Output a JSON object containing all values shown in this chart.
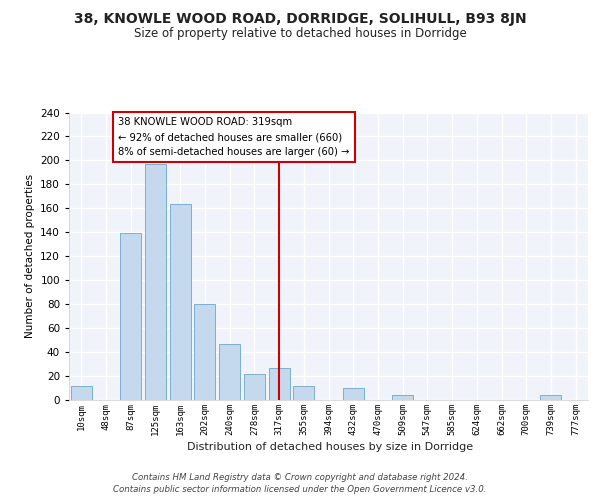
{
  "title": "38, KNOWLE WOOD ROAD, DORRIDGE, SOLIHULL, B93 8JN",
  "subtitle": "Size of property relative to detached houses in Dorridge",
  "xlabel": "Distribution of detached houses by size in Dorridge",
  "ylabel": "Number of detached properties",
  "bar_labels": [
    "10sqm",
    "48sqm",
    "87sqm",
    "125sqm",
    "163sqm",
    "202sqm",
    "240sqm",
    "278sqm",
    "317sqm",
    "355sqm",
    "394sqm",
    "432sqm",
    "470sqm",
    "509sqm",
    "547sqm",
    "585sqm",
    "624sqm",
    "662sqm",
    "700sqm",
    "739sqm",
    "777sqm"
  ],
  "bar_values": [
    12,
    0,
    139,
    197,
    164,
    80,
    47,
    22,
    27,
    12,
    0,
    10,
    0,
    4,
    0,
    0,
    0,
    0,
    0,
    4,
    0
  ],
  "bar_color": "#c5d9ee",
  "bar_edge_color": "#7aafd4",
  "vline_color": "#cc0000",
  "annotation_text": "38 KNOWLE WOOD ROAD: 319sqm\n← 92% of detached houses are smaller (660)\n8% of semi-detached houses are larger (60) →",
  "annotation_box_color": "#ffffff",
  "annotation_box_edge": "#cc0000",
  "ylim": [
    0,
    240
  ],
  "yticks": [
    0,
    20,
    40,
    60,
    80,
    100,
    120,
    140,
    160,
    180,
    200,
    220,
    240
  ],
  "footer_line1": "Contains HM Land Registry data © Crown copyright and database right 2024.",
  "footer_line2": "Contains public sector information licensed under the Open Government Licence v3.0.",
  "bg_color": "#ffffff",
  "plot_bg_color": "#f0f4fa",
  "grid_color": "#ffffff",
  "title_color": "#222222",
  "footer_color": "#444444"
}
